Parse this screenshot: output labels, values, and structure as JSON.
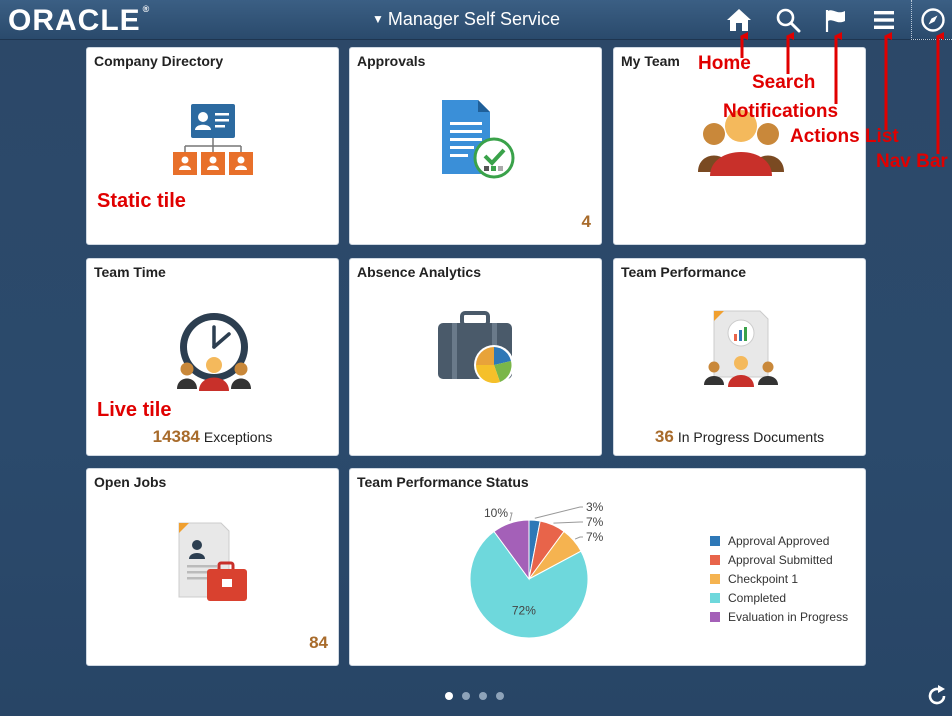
{
  "header": {
    "logo": "ORACLE",
    "logo_mark": "®",
    "app_title": "Manager Self Service",
    "icons": [
      "home-icon",
      "search-icon",
      "flag-icon",
      "menu-icon",
      "compass-icon"
    ]
  },
  "annotations": {
    "home": "Home",
    "search": "Search",
    "notifications": "Notifications",
    "actions_list": "Actions List",
    "nav_bar": "Nav Bar",
    "static_tile": "Static tile",
    "live_tile": "Live tile"
  },
  "tiles": {
    "company_directory": {
      "title": "Company Directory"
    },
    "approvals": {
      "title": "Approvals",
      "count": "4"
    },
    "my_team": {
      "title": "My Team"
    },
    "team_time": {
      "title": "Team Time",
      "count": "14384",
      "count_label": "Exceptions"
    },
    "absence_analytics": {
      "title": "Absence Analytics"
    },
    "team_performance": {
      "title": "Team Performance",
      "count": "36",
      "count_label": "In Progress Documents"
    },
    "open_jobs": {
      "title": "Open Jobs",
      "count": "84"
    },
    "team_performance_status": {
      "title": "Team Performance Status"
    }
  },
  "chart_data": {
    "type": "pie",
    "title": "Team Performance Status",
    "slices": [
      {
        "name": "Approval Approved",
        "value": 3,
        "label": "3%",
        "color": "#2e78b7"
      },
      {
        "name": "Approval Submitted",
        "value": 7,
        "label": "7%",
        "color": "#e8644a"
      },
      {
        "name": "Checkpoint 1",
        "value": 7,
        "label": "7%",
        "color": "#f5b350"
      },
      {
        "name": "Completed",
        "value": 72,
        "label": "72%",
        "color": "#6ed8dc"
      },
      {
        "name": "Evaluation in Progress",
        "value": 10,
        "label": "10%",
        "color": "#a460b8"
      }
    ],
    "legend": "right"
  },
  "pager": {
    "pages": 4,
    "active": 0
  },
  "colors": {
    "accent_count": "#a86b2b",
    "annotation": "#e00000",
    "header": "#2a4a6c"
  }
}
